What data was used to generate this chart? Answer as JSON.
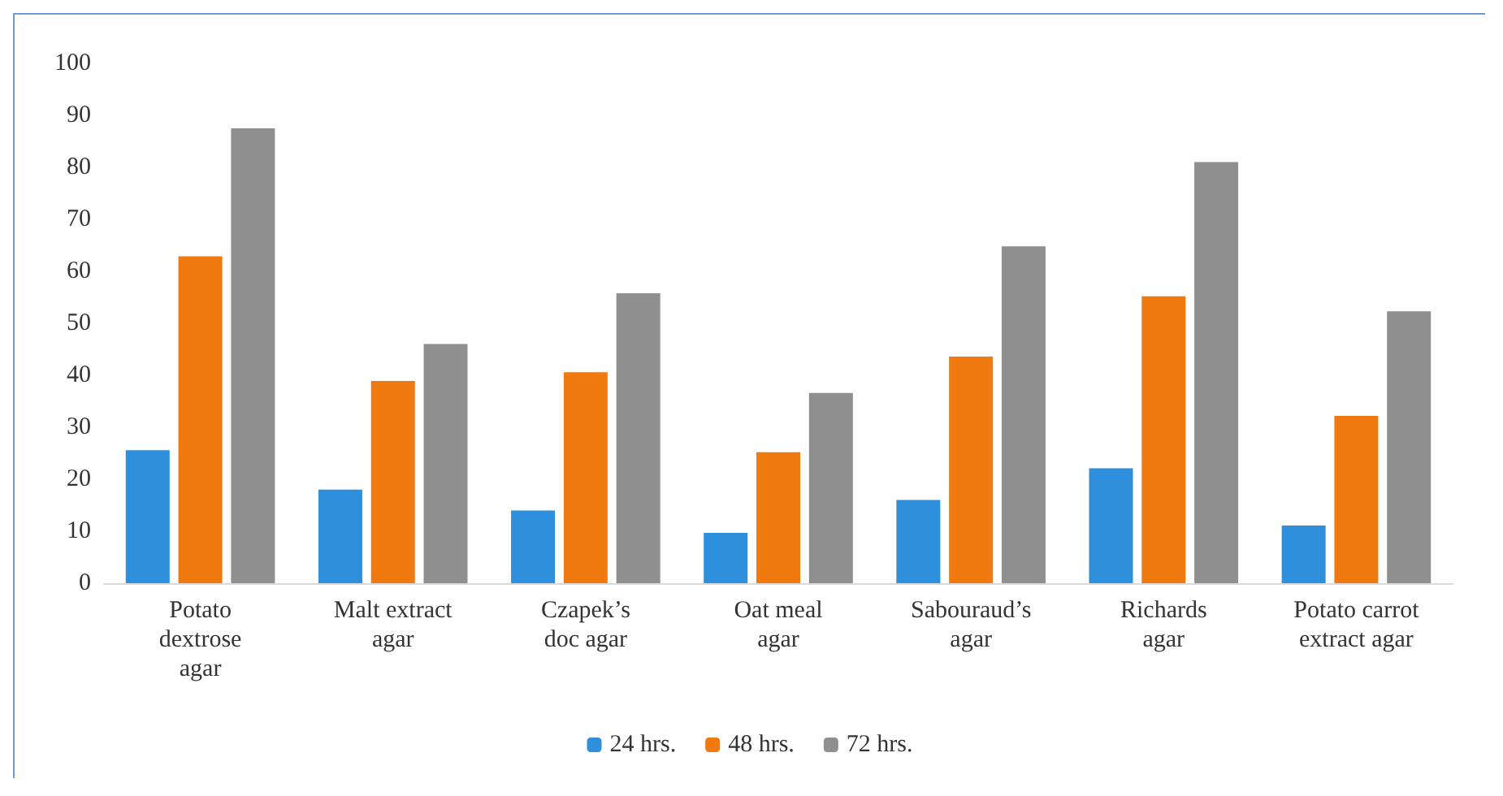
{
  "chart_data": {
    "type": "bar",
    "categories": [
      "Potato\ndextrose\nagar",
      "Malt extract\nagar",
      "Czapek’s\ndoc agar",
      "Oat meal\nagar",
      "Sabouraud’s\nagar",
      "Richards\nagar",
      "Potato carrot\nextract agar"
    ],
    "series": [
      {
        "name": "24 hrs.",
        "color": "#2e8fdc",
        "values": [
          25.6,
          18,
          14,
          9.7,
          16,
          22.1,
          11.1
        ]
      },
      {
        "name": "48 hrs.",
        "color": "#f07a10",
        "values": [
          62.9,
          38.9,
          40.6,
          25.2,
          43.6,
          55.2,
          32.2
        ]
      },
      {
        "name": "72 hrs.",
        "color": "#8f8f8f",
        "values": [
          87.5,
          46,
          55.8,
          36.6,
          64.8,
          81,
          52.3
        ]
      }
    ],
    "ylim": [
      0,
      100
    ],
    "yticks": [
      0,
      10,
      20,
      30,
      40,
      50,
      60,
      70,
      80,
      90,
      100
    ],
    "grid": false,
    "legend": "bottom"
  }
}
